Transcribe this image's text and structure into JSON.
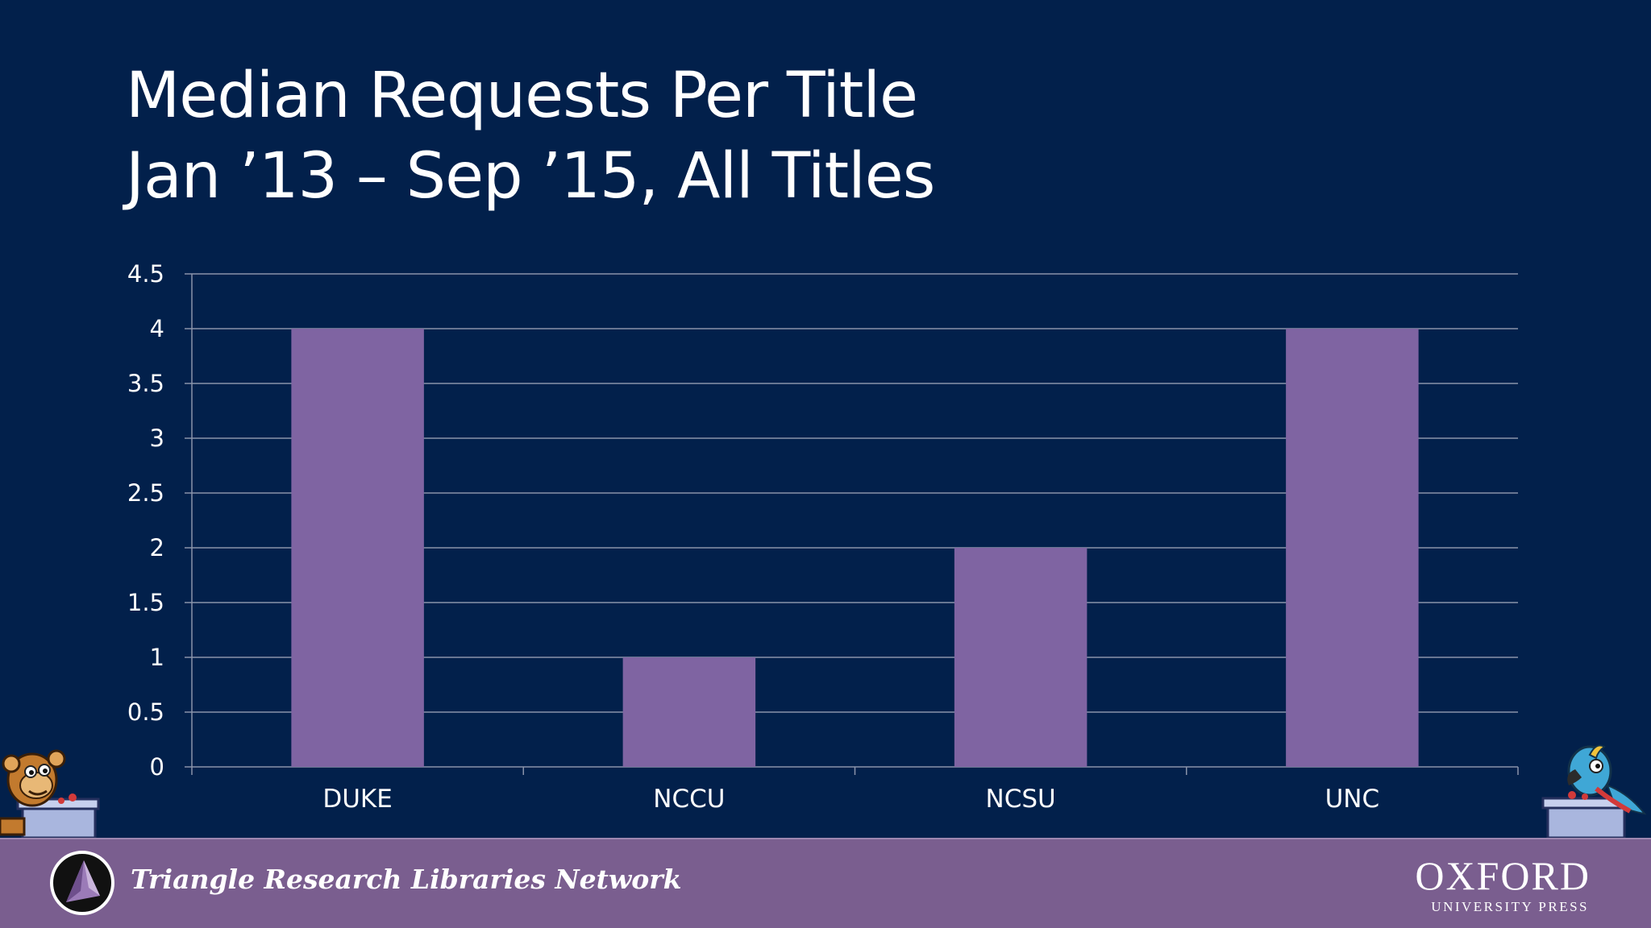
{
  "slide": {
    "title_line_1": "Median Requests Per Title",
    "title_line_2": "Jan ’13 – Sep ’15, All Titles"
  },
  "footer": {
    "network_name": "Triangle Research Libraries Network",
    "publisher_word": "OXFORD",
    "publisher_sub": "UNIVERSITY PRESS"
  },
  "icons": {
    "left_mascot": "monkey-at-podium-icon",
    "right_mascot": "parrot-at-podium-icon",
    "trln_logo": "pyramid-circle-logo"
  },
  "colors": {
    "background": "#02204b",
    "bar": "#7f64a2",
    "gridline": "#8a93aa",
    "footer": "#7a5e8f",
    "text": "#ffffff"
  },
  "chart_data": {
    "type": "bar",
    "categories": [
      "DUKE",
      "NCCU",
      "NCSU",
      "UNC"
    ],
    "values": [
      4,
      1,
      2,
      4
    ],
    "title": "Median Requests Per Title",
    "subtitle": "Jan ’13 – Sep ’15, All Titles",
    "xlabel": "",
    "ylabel": "",
    "ylim": [
      0,
      4.5
    ],
    "yticks": [
      0,
      0.5,
      1,
      1.5,
      2,
      2.5,
      3,
      3.5,
      4,
      4.5
    ],
    "ytick_labels": [
      "0",
      "0.5",
      "1",
      "1.5",
      "2",
      "2.5",
      "3",
      "3.5",
      "4",
      "4.5"
    ],
    "grid": true,
    "legend": "none"
  }
}
